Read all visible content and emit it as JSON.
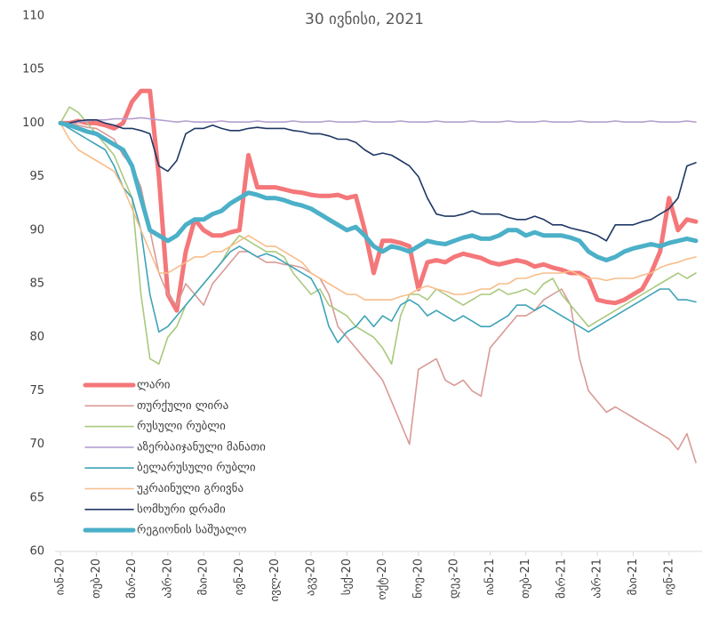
{
  "chart_data": {
    "type": "line",
    "title": "30 ივნისი, 2021",
    "categories": [
      "იან-20",
      null,
      null,
      null,
      "თებ-20",
      null,
      null,
      null,
      "მარ-20",
      null,
      null,
      null,
      "აპრ-20",
      null,
      null,
      null,
      "მაი-20",
      null,
      null,
      null,
      "ივნ-20",
      null,
      null,
      null,
      "ივლ-20",
      null,
      null,
      null,
      "აგვ-20",
      null,
      null,
      null,
      "სექ-20",
      null,
      null,
      null,
      "ოქტ-20",
      null,
      null,
      null,
      "ნოე-20",
      null,
      null,
      null,
      "დეკ-20",
      null,
      null,
      null,
      "იან-21",
      null,
      null,
      null,
      "თებ-21",
      null,
      null,
      null,
      "მარ-21",
      null,
      null,
      null,
      "აპრ-21",
      null,
      null,
      null,
      "მაი-21",
      null,
      null,
      null,
      "ივნ-21",
      null,
      null,
      null
    ],
    "ylim": [
      60,
      110
    ],
    "yticks": [
      60,
      65,
      70,
      75,
      80,
      85,
      90,
      95,
      100,
      105,
      110
    ],
    "series": [
      {
        "name": "ლარი",
        "color": "#f4777a",
        "width": 5,
        "values": [
          100,
          100,
          100.2,
          100,
          100,
          99.8,
          99.5,
          100,
          102,
          103,
          103,
          95,
          84,
          82.5,
          88,
          91,
          90,
          89.5,
          89.5,
          89.8,
          90,
          97,
          94,
          94,
          94,
          93.8,
          93.6,
          93.5,
          93.3,
          93.2,
          93.2,
          93.3,
          93,
          93.2,
          90,
          86,
          89,
          89,
          88.8,
          88.5,
          84.5,
          87,
          87.2,
          87,
          87.5,
          87.8,
          87.6,
          87.4,
          87,
          86.8,
          87,
          87.2,
          87,
          86.6,
          86.8,
          86.5,
          86.3,
          86,
          86,
          85.5,
          83.5,
          83.3,
          83.2,
          83.5,
          84,
          84.5,
          86,
          88,
          93,
          90,
          91,
          90.8
        ]
      },
      {
        "name": "თურქული ლირა",
        "color": "#d99a96",
        "width": 1.6,
        "values": [
          100,
          100,
          99.8,
          99.6,
          99.5,
          99,
          98.5,
          97,
          96,
          94,
          90,
          86,
          84,
          83,
          85,
          84,
          83,
          85,
          86,
          87,
          88,
          88,
          87.5,
          87,
          87,
          86.8,
          86.7,
          86.5,
          86,
          85.5,
          84,
          81,
          80,
          79,
          78,
          77,
          76,
          74,
          72,
          70,
          77,
          77.5,
          78,
          76,
          75.5,
          76,
          75,
          74.5,
          79,
          80,
          81,
          82,
          82,
          82.5,
          83.5,
          84,
          84.5,
          83,
          78,
          75,
          74,
          73,
          73.5,
          73,
          72.5,
          72,
          71.5,
          71,
          70.5,
          69.5,
          71,
          68.3
        ]
      },
      {
        "name": "რუსული რუბლი",
        "color": "#a9c97e",
        "width": 1.6,
        "values": [
          100,
          101.5,
          101,
          100,
          99,
          98,
          97,
          95,
          93,
          84,
          78,
          77.5,
          80,
          81,
          83,
          84,
          85,
          86,
          87,
          88.5,
          89.5,
          89,
          88.5,
          88,
          88,
          87.5,
          86,
          85,
          84,
          84.5,
          83,
          82.5,
          82,
          81,
          80.5,
          80,
          79,
          77.5,
          82,
          84,
          84,
          83.5,
          84.5,
          84,
          83.5,
          83,
          83.5,
          84,
          84,
          84.5,
          84,
          84.2,
          84.5,
          84,
          85,
          85.5,
          84,
          83,
          82,
          81,
          81.5,
          82,
          82.5,
          83,
          83.5,
          84,
          84.5,
          85,
          85.5,
          86,
          85.5,
          86
        ]
      },
      {
        "name": "აზერბაიჯანული მანათი",
        "color": "#b49fd0",
        "width": 1.6,
        "values": [
          100,
          100,
          100.1,
          100.2,
          100.3,
          100.3,
          100.4,
          100.4,
          100.4,
          100.5,
          100.4,
          100.3,
          100.2,
          100.1,
          100.2,
          100.1,
          100.1,
          100.1,
          100.2,
          100.1,
          100.1,
          100.1,
          100.2,
          100.1,
          100.1,
          100.1,
          100.2,
          100.1,
          100.1,
          100.1,
          100.2,
          100.1,
          100.1,
          100.1,
          100.2,
          100.1,
          100.1,
          100.1,
          100.2,
          100.1,
          100.1,
          100.1,
          100.2,
          100.1,
          100.1,
          100.1,
          100.2,
          100.1,
          100.1,
          100.1,
          100.2,
          100.1,
          100.1,
          100.1,
          100.2,
          100.1,
          100.1,
          100.1,
          100.2,
          100.1,
          100.1,
          100.1,
          100.2,
          100.1,
          100.1,
          100.1,
          100.2,
          100.1,
          100.1,
          100.1,
          100.2,
          100.1
        ]
      },
      {
        "name": "ბელარუსული რუბლი",
        "color": "#3ea3b8",
        "width": 1.6,
        "values": [
          100,
          99.5,
          99,
          98.5,
          98,
          97.5,
          96,
          94,
          93,
          90,
          84,
          80.5,
          81,
          82,
          83,
          84,
          85,
          86,
          87,
          88,
          88.5,
          88,
          87.5,
          87.8,
          87.5,
          87,
          86.5,
          86,
          85.5,
          84,
          81,
          79.5,
          80.5,
          81,
          82,
          81,
          82,
          81.5,
          83,
          83.5,
          83,
          82,
          82.5,
          82,
          81.5,
          82,
          81.5,
          81,
          81,
          81.5,
          82,
          83,
          83,
          82.5,
          83,
          82.5,
          82,
          81.5,
          81,
          80.5,
          81,
          81.5,
          82,
          82.5,
          83,
          83.5,
          84,
          84.5,
          84.5,
          83.5,
          83.5,
          83.3
        ]
      },
      {
        "name": "უკრაინული გრივნა",
        "color": "#f8bd8a",
        "width": 1.6,
        "values": [
          100,
          98.5,
          97.5,
          97,
          96.5,
          96,
          95.5,
          94,
          92,
          90,
          88,
          86,
          86,
          86.5,
          87,
          87.5,
          87.5,
          88,
          88,
          88.5,
          89,
          89.5,
          89,
          88.5,
          88.5,
          88,
          87.5,
          87,
          86,
          85.5,
          85,
          84.5,
          84,
          84,
          83.5,
          83.5,
          83.5,
          83.5,
          83.8,
          84,
          84.5,
          84.8,
          84.5,
          84.3,
          84,
          84,
          84.2,
          84.5,
          84.5,
          85,
          85,
          85.5,
          85.5,
          85.8,
          86,
          86,
          86,
          86.2,
          85.8,
          85.5,
          85.5,
          85.3,
          85.5,
          85.5,
          85.5,
          85.8,
          86,
          86.5,
          86.8,
          87,
          87.3,
          87.5
        ]
      },
      {
        "name": "სომხური დრამი",
        "color": "#1f3864",
        "width": 1.6,
        "values": [
          100,
          100,
          100.2,
          100.3,
          100.3,
          100,
          99.8,
          99.5,
          99.5,
          99.3,
          99,
          96,
          95.5,
          96.5,
          99,
          99.5,
          99.5,
          99.8,
          99.5,
          99.3,
          99.3,
          99.5,
          99.6,
          99.5,
          99.5,
          99.5,
          99.3,
          99.2,
          99,
          99,
          98.8,
          98.5,
          98.5,
          98.2,
          97.5,
          97,
          97.2,
          97,
          96.5,
          96,
          95,
          93,
          91.5,
          91.3,
          91.3,
          91.5,
          91.8,
          91.5,
          91.5,
          91.5,
          91.2,
          91,
          91,
          91.3,
          91,
          90.5,
          90.5,
          90.2,
          90,
          89.8,
          89.5,
          89,
          90.5,
          90.5,
          90.5,
          90.8,
          91,
          91.5,
          92,
          93,
          96,
          96.3
        ]
      },
      {
        "name": "რეგიონის საშუალო",
        "color": "#4bb0c8",
        "width": 5,
        "values": [
          100,
          99.8,
          99.5,
          99.2,
          99,
          98.5,
          98,
          97.5,
          96,
          93,
          90,
          89.5,
          89,
          89.5,
          90.5,
          91,
          91,
          91.5,
          91.8,
          92.5,
          93,
          93.5,
          93.3,
          93,
          93,
          92.8,
          92.5,
          92.3,
          92,
          91.5,
          91,
          90.5,
          90,
          90.3,
          89.5,
          88.5,
          88,
          88.5,
          88.3,
          88,
          88.5,
          89,
          88.8,
          88.7,
          89,
          89.3,
          89.5,
          89.2,
          89.2,
          89.5,
          90,
          90,
          89.5,
          89.8,
          89.5,
          89.5,
          89.5,
          89.3,
          89,
          88,
          87.5,
          87.2,
          87.5,
          88,
          88.3,
          88.5,
          88.7,
          88.5,
          88.8,
          89,
          89.2,
          89
        ]
      }
    ]
  }
}
